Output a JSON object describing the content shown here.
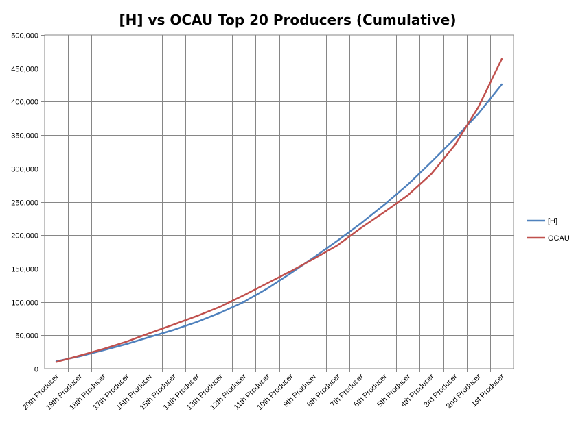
{
  "chart_data": {
    "type": "line",
    "title": "[H] vs OCAU Top 20 Producers (Cumulative)",
    "xlabel": "",
    "ylabel": "",
    "categories": [
      "20th Producer",
      "19th Producer",
      "18th Producer",
      "17th Producer",
      "16th Producer",
      "15th Producer",
      "14th Producer",
      "13th Producer",
      "12th Producer",
      "11th Producer",
      "10th Producer",
      "9th Producer",
      "8th Producer",
      "7th Producer",
      "6th Producer",
      "5th Producer",
      "4th Producer",
      "3rd Producer",
      "2nd Producer",
      "1st Producer"
    ],
    "ylim": [
      0,
      500000
    ],
    "yticks": [
      0,
      50000,
      100000,
      150000,
      200000,
      250000,
      300000,
      350000,
      400000,
      450000,
      500000
    ],
    "ytick_labels": [
      "0",
      "50,000",
      "100,000",
      "150,000",
      "200,000",
      "250,000",
      "300,000",
      "350,000",
      "400,000",
      "450,000",
      "500,000"
    ],
    "grid": true,
    "legend_position": "right",
    "series": [
      {
        "name": "[H]",
        "color": "#4F81BD",
        "values": [
          11000,
          18500,
          27500,
          37000,
          47500,
          58000,
          70000,
          84000,
          100000,
          120000,
          143000,
          167000,
          192000,
          218000,
          246000,
          276000,
          310000,
          345000,
          382000,
          426000
        ]
      },
      {
        "name": "OCAU",
        "color": "#C0504D",
        "values": [
          10000,
          19500,
          29500,
          40500,
          53500,
          66000,
          79000,
          93000,
          110000,
          128000,
          146000,
          165000,
          185000,
          211000,
          235000,
          260000,
          292000,
          335000,
          392000,
          464000
        ]
      }
    ]
  }
}
